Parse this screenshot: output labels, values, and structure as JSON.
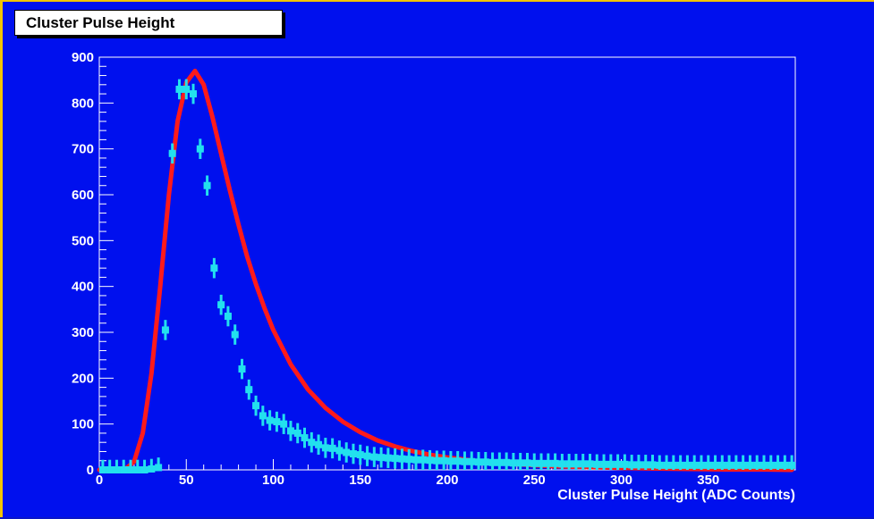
{
  "colors": {
    "background": "#0010ee",
    "border": "#f2c400",
    "data_points": "#22e0ee",
    "fit_curve": "#ff1a1a",
    "text": "#ffffff"
  },
  "chart_data": {
    "type": "scatter",
    "title": "Cluster Pulse Height",
    "xlabel": "Cluster Pulse Height (ADC Counts)",
    "ylabel": "",
    "xlim": [
      0,
      400
    ],
    "ylim": [
      0,
      900
    ],
    "xticks": [
      0,
      50,
      100,
      150,
      200,
      250,
      300,
      350
    ],
    "yticks": [
      0,
      100,
      200,
      300,
      400,
      500,
      600,
      700,
      800,
      900
    ],
    "grid": false,
    "series": [
      {
        "name": "",
        "style": "points-with-error-bars",
        "x": [
          2,
          6,
          10,
          14,
          18,
          22,
          26,
          30,
          34,
          38,
          42,
          46,
          50,
          54,
          58,
          62,
          66,
          70,
          74,
          78,
          82,
          86,
          90,
          94,
          98,
          102,
          106,
          110,
          114,
          118,
          122,
          126,
          130,
          134,
          138,
          142,
          146,
          150,
          154,
          158,
          162,
          166,
          170,
          174,
          178,
          182,
          186,
          190,
          194,
          198,
          202,
          206,
          210,
          214,
          218,
          222,
          226,
          230,
          234,
          238,
          242,
          246,
          250,
          254,
          258,
          262,
          266,
          270,
          274,
          278,
          282,
          286,
          290,
          294,
          298,
          302,
          306,
          310,
          314,
          318,
          322,
          326,
          330,
          334,
          338,
          342,
          346,
          350,
          354,
          358,
          362,
          366,
          370,
          374,
          378,
          382,
          386,
          390,
          394,
          398
        ],
        "y": [
          0,
          0,
          0,
          0,
          0,
          0,
          0,
          2,
          5,
          305,
          690,
          830,
          830,
          820,
          700,
          620,
          440,
          360,
          335,
          295,
          220,
          175,
          140,
          118,
          108,
          105,
          100,
          85,
          80,
          70,
          60,
          55,
          48,
          47,
          42,
          38,
          35,
          33,
          30,
          28,
          27,
          26,
          25,
          24,
          23,
          22,
          22,
          21,
          20,
          20,
          19,
          19,
          18,
          18,
          17,
          17,
          16,
          16,
          16,
          15,
          15,
          15,
          14,
          14,
          14,
          14,
          13,
          13,
          13,
          13,
          13,
          12,
          12,
          12,
          12,
          12,
          11,
          11,
          11,
          11,
          10,
          10,
          10,
          10,
          10,
          10,
          10,
          10,
          10,
          10,
          10,
          10,
          10,
          10,
          10,
          10,
          10,
          10,
          10,
          10
        ],
        "yerr": 22
      },
      {
        "name": "",
        "style": "fit-curve",
        "x": [
          0,
          10,
          15,
          20,
          25,
          30,
          35,
          40,
          45,
          50,
          55,
          60,
          65,
          70,
          75,
          80,
          85,
          90,
          95,
          100,
          110,
          120,
          130,
          140,
          150,
          160,
          170,
          180,
          190,
          200,
          220,
          240,
          260,
          280,
          300,
          320,
          340,
          360,
          380,
          398
        ],
        "y": [
          0,
          0,
          2,
          18,
          80,
          210,
          400,
          600,
          760,
          845,
          870,
          840,
          770,
          690,
          610,
          535,
          465,
          405,
          352,
          305,
          230,
          175,
          135,
          105,
          82,
          64,
          51,
          41,
          33,
          27,
          18,
          12,
          8,
          6,
          4,
          3,
          2,
          1,
          1,
          0
        ]
      }
    ]
  }
}
